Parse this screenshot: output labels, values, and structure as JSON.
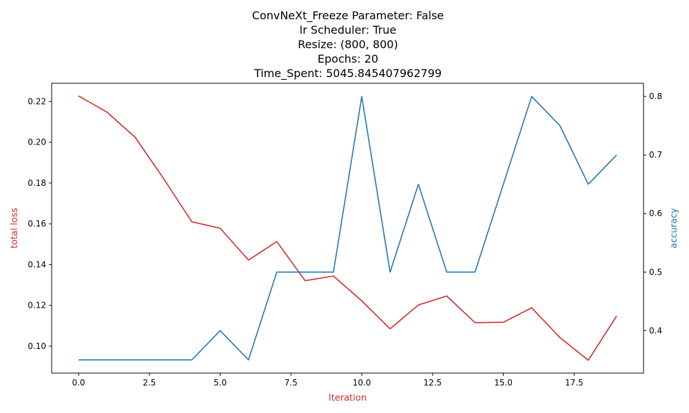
{
  "chart_data": {
    "type": "line",
    "title_lines": [
      "ConvNeXt_Freeze Parameter: False",
      "lr Scheduler: True",
      "Resize: (800, 800)",
      "Epochs: 20",
      "Time_Spent: 5045.845407962799"
    ],
    "xlabel": "Iteration",
    "ylabel_left": "total loss",
    "ylabel_right": "accuracy",
    "xlim": [
      -0.95,
      19.95
    ],
    "ylim_left": [
      0.0868,
      0.2289
    ],
    "ylim_right": [
      0.3275,
      0.8225
    ],
    "x_ticks": [
      0,
      2.5,
      5,
      7.5,
      10,
      12.5,
      15,
      17.5
    ],
    "x_tick_labels": [
      "0.0",
      "2.5",
      "5.0",
      "7.5",
      "10.0",
      "12.5",
      "15.0",
      "17.5"
    ],
    "y_ticks_left": [
      0.1,
      0.12,
      0.14,
      0.16,
      0.18,
      0.2,
      0.22
    ],
    "y_tick_labels_left": [
      "0.10",
      "0.12",
      "0.14",
      "0.16",
      "0.18",
      "0.20",
      "0.22"
    ],
    "y_ticks_right": [
      0.4,
      0.5,
      0.6,
      0.7,
      0.8
    ],
    "y_tick_labels_right": [
      "0.4",
      "0.5",
      "0.6",
      "0.7",
      "0.8"
    ],
    "grid": false,
    "x": [
      0,
      1,
      2,
      3,
      4,
      5,
      6,
      7,
      8,
      9,
      10,
      11,
      12,
      13,
      14,
      15,
      16,
      17,
      18,
      19
    ],
    "series": [
      {
        "axis": "left",
        "color": "#d62728",
        "values": [
          0.2227,
          0.2148,
          0.2024,
          0.1822,
          0.161,
          0.1578,
          0.1422,
          0.1513,
          0.1321,
          0.1344,
          0.1222,
          0.1085,
          0.1202,
          0.1246,
          0.1115,
          0.1117,
          0.1188,
          0.1042,
          0.0931,
          0.1148
        ]
      },
      {
        "axis": "right",
        "color": "#1f77b4",
        "values": [
          0.35,
          0.35,
          0.35,
          0.35,
          0.35,
          0.4,
          0.35,
          0.5,
          0.5,
          0.5,
          0.8,
          0.5,
          0.65,
          0.5,
          0.5,
          0.65,
          0.8,
          0.75,
          0.65,
          0.7
        ]
      }
    ]
  }
}
